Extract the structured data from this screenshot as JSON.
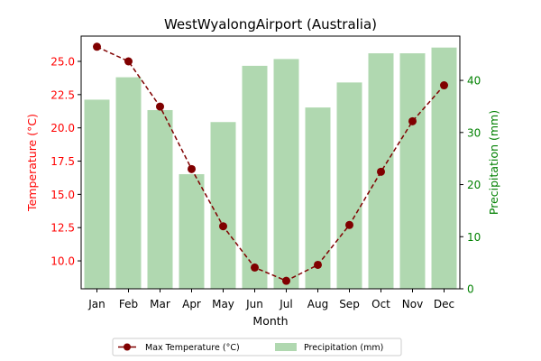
{
  "chart_data": {
    "type": "bar+line",
    "title": "WestWyalongAirport (Australia)",
    "xlabel": "Month",
    "categories": [
      "Jan",
      "Feb",
      "Mar",
      "Apr",
      "May",
      "Jun",
      "Jul",
      "Aug",
      "Sep",
      "Oct",
      "Nov",
      "Dec"
    ],
    "left_axis": {
      "label": "Temperature (°C)",
      "color": "#ff0000",
      "ylim": [
        7.9,
        26.9
      ],
      "ticks": [
        "10.0",
        "12.5",
        "15.0",
        "17.5",
        "20.0",
        "22.5",
        "25.0"
      ]
    },
    "right_axis": {
      "label": "Precipitation (mm)",
      "color": "#008000",
      "ylim": [
        0,
        48.5
      ],
      "ticks": [
        "0",
        "10",
        "20",
        "30",
        "40"
      ]
    },
    "series": [
      {
        "name": "Max Temperature (°C)",
        "kind": "line",
        "axis": "left",
        "color": "#800000",
        "linestyle": "dashed",
        "marker": "circle",
        "values": [
          26.1,
          25.0,
          21.6,
          16.9,
          12.6,
          9.5,
          8.5,
          9.7,
          12.7,
          16.7,
          20.5,
          23.2
        ]
      },
      {
        "name": "Precipitation (mm)",
        "kind": "bar",
        "axis": "right",
        "color": "#b0d8b0",
        "values": [
          36.3,
          40.6,
          34.3,
          22.0,
          32.0,
          42.8,
          44.1,
          34.8,
          39.6,
          45.2,
          45.2,
          46.3
        ]
      }
    ],
    "legend": {
      "placement": "bottom-center"
    },
    "grid": false
  }
}
